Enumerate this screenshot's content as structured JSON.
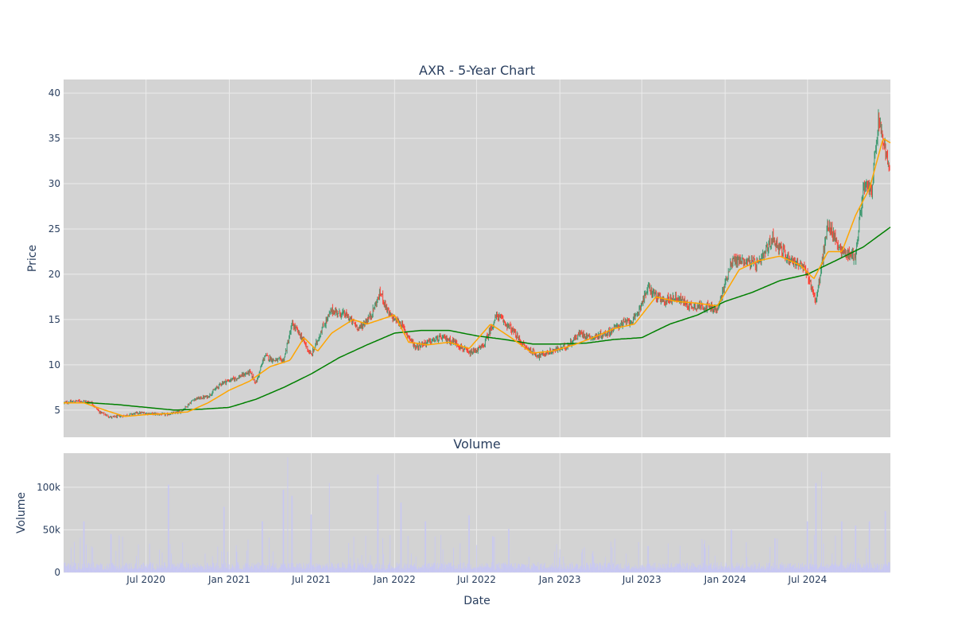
{
  "chart_data": [
    {
      "type": "candlestick",
      "title": "AXR - 5-Year Chart",
      "ylabel": "Price",
      "ylim": [
        2,
        41.5
      ],
      "yticks": [
        5,
        10,
        15,
        20,
        25,
        30,
        35,
        40
      ],
      "ytick_labels": [
        "5",
        "10",
        "15",
        "20",
        "25",
        "30",
        "35",
        "40"
      ],
      "grid": true,
      "legend": "none",
      "x_start": "2020-01-01",
      "x_end": "2024-12-31",
      "colors": {
        "background": "#d3d3d3",
        "increasing": "#3d9970",
        "decreasing": "#ff4136",
        "ma_short": "#ffa500",
        "ma_long": "#008000",
        "grid": "#ebebeb"
      },
      "close_series": {
        "dates": [
          "2020-01-01",
          "2020-02-01",
          "2020-03-01",
          "2020-03-20",
          "2020-04-15",
          "2020-05-15",
          "2020-06-15",
          "2020-07-15",
          "2020-08-15",
          "2020-09-15",
          "2020-10-15",
          "2020-11-15",
          "2020-12-15",
          "2021-01-15",
          "2021-02-15",
          "2021-03-01",
          "2021-03-20",
          "2021-04-10",
          "2021-05-01",
          "2021-05-20",
          "2021-06-10",
          "2021-07-01",
          "2021-07-25",
          "2021-08-15",
          "2021-09-15",
          "2021-10-15",
          "2021-11-10",
          "2021-12-01",
          "2021-12-20",
          "2022-01-15",
          "2022-02-15",
          "2022-03-15",
          "2022-04-15",
          "2022-05-15",
          "2022-06-15",
          "2022-07-15",
          "2022-08-15",
          "2022-09-15",
          "2022-10-15",
          "2022-11-15",
          "2022-12-15",
          "2023-01-15",
          "2023-02-15",
          "2023-03-15",
          "2023-04-15",
          "2023-05-15",
          "2023-06-15",
          "2023-07-15",
          "2023-08-15",
          "2023-09-15",
          "2023-10-15",
          "2023-11-15",
          "2023-12-15",
          "2024-01-15",
          "2024-02-15",
          "2024-03-15",
          "2024-04-15",
          "2024-05-15",
          "2024-06-15",
          "2024-07-01",
          "2024-07-20",
          "2024-08-15",
          "2024-09-15",
          "2024-10-15",
          "2024-11-01",
          "2024-11-20",
          "2024-12-05",
          "2024-12-31"
        ],
        "close": [
          5.8,
          6.0,
          5.9,
          4.8,
          4.2,
          4.4,
          4.7,
          4.6,
          4.5,
          4.8,
          6.2,
          6.5,
          8.0,
          8.5,
          9.2,
          8.0,
          11.0,
          10.5,
          10.5,
          14.5,
          13.0,
          11.0,
          14.0,
          16.0,
          15.5,
          14.0,
          15.5,
          18.0,
          15.5,
          14.5,
          12.0,
          12.5,
          13.0,
          12.5,
          11.2,
          12.0,
          15.5,
          14.0,
          12.0,
          11.0,
          11.5,
          12.0,
          13.5,
          13.0,
          13.5,
          14.5,
          15.0,
          18.5,
          17.0,
          17.5,
          16.5,
          16.5,
          16.0,
          21.5,
          21.5,
          21.0,
          24.0,
          22.0,
          21.0,
          20.0,
          17.0,
          25.5,
          22.5,
          22.0,
          29.5,
          29.5,
          37.0,
          31.0
        ]
      },
      "ma_short_series": {
        "dates": [
          "2020-01-01",
          "2020-02-15",
          "2020-04-01",
          "2020-05-15",
          "2020-07-01",
          "2020-08-15",
          "2020-10-01",
          "2020-11-15",
          "2021-01-01",
          "2021-02-15",
          "2021-04-01",
          "2021-05-15",
          "2021-06-15",
          "2021-07-15",
          "2021-08-15",
          "2021-10-01",
          "2021-11-01",
          "2021-12-01",
          "2022-01-01",
          "2022-02-01",
          "2022-03-15",
          "2022-05-01",
          "2022-06-15",
          "2022-08-01",
          "2022-09-15",
          "2022-11-01",
          "2022-12-15",
          "2023-02-01",
          "2023-03-15",
          "2023-05-01",
          "2023-06-15",
          "2023-08-01",
          "2023-09-15",
          "2023-11-01",
          "2023-12-15",
          "2024-02-01",
          "2024-03-15",
          "2024-05-01",
          "2024-06-15",
          "2024-07-15",
          "2024-08-15",
          "2024-09-15",
          "2024-10-15",
          "2024-11-15",
          "2024-12-15",
          "2024-12-31"
        ],
        "values": [
          5.8,
          5.8,
          5.0,
          4.3,
          4.5,
          4.6,
          4.8,
          5.8,
          7.2,
          8.2,
          9.8,
          10.5,
          13.0,
          11.5,
          13.5,
          15.0,
          14.5,
          15.0,
          15.5,
          12.5,
          12.2,
          12.5,
          11.8,
          14.5,
          13.0,
          11.3,
          11.5,
          12.2,
          13.0,
          14.0,
          14.5,
          17.5,
          17.0,
          16.8,
          16.5,
          20.5,
          21.5,
          22.0,
          21.0,
          19.5,
          22.5,
          22.5,
          26.5,
          29.5,
          35.0,
          34.5
        ]
      },
      "ma_long_series": {
        "dates": [
          "2020-01-01",
          "2020-03-01",
          "2020-05-01",
          "2020-07-01",
          "2020-09-01",
          "2020-11-01",
          "2021-01-01",
          "2021-03-01",
          "2021-05-01",
          "2021-07-01",
          "2021-09-01",
          "2021-11-01",
          "2022-01-01",
          "2022-03-01",
          "2022-05-01",
          "2022-07-01",
          "2022-09-01",
          "2022-11-01",
          "2023-01-01",
          "2023-03-01",
          "2023-05-01",
          "2023-07-01",
          "2023-09-01",
          "2023-11-01",
          "2024-01-01",
          "2024-03-01",
          "2024-05-01",
          "2024-07-01",
          "2024-09-01",
          "2024-11-01",
          "2024-12-31"
        ],
        "values": [
          5.8,
          5.8,
          5.6,
          5.3,
          5.0,
          5.1,
          5.3,
          6.2,
          7.5,
          9.0,
          10.8,
          12.2,
          13.5,
          13.8,
          13.8,
          13.2,
          12.8,
          12.3,
          12.3,
          12.4,
          12.8,
          13.0,
          14.5,
          15.5,
          17.0,
          18.0,
          19.3,
          20.0,
          21.5,
          23.0,
          25.2
        ]
      }
    },
    {
      "type": "bar",
      "title": "Volume",
      "xlabel": "Date",
      "ylabel": "Volume",
      "ylim": [
        0,
        140000
      ],
      "yticks": [
        0,
        50000,
        100000
      ],
      "ytick_labels": [
        "0",
        "50k",
        "100k"
      ],
      "grid": true,
      "colors": {
        "bar": "#c7c7f5",
        "background": "#d3d3d3"
      },
      "x_tick_dates": [
        "2020-07-01",
        "2021-01-01",
        "2021-07-01",
        "2022-01-01",
        "2022-07-01",
        "2023-01-01",
        "2023-07-01",
        "2024-01-01",
        "2024-07-01"
      ],
      "x_tick_labels": [
        "Jul 2020",
        "Jan 2021",
        "Jul 2021",
        "Jan 2022",
        "Jul 2022",
        "Jan 2023",
        "Jul 2023",
        "Jan 2024",
        "Jul 2024"
      ],
      "volume_spikes": {
        "dates": [
          "2020-02-15",
          "2020-04-15",
          "2020-08-20",
          "2020-12-20",
          "2021-03-15",
          "2021-05-01",
          "2021-05-10",
          "2021-05-20",
          "2021-07-01",
          "2021-08-10",
          "2021-11-25",
          "2022-01-15",
          "2022-03-10",
          "2022-06-15",
          "2022-09-10",
          "2023-03-15",
          "2023-07-15",
          "2024-01-15",
          "2024-04-20",
          "2024-07-01",
          "2024-07-20",
          "2024-08-01",
          "2024-09-15",
          "2024-10-15",
          "2024-11-15",
          "2024-12-20"
        ],
        "values": [
          60000,
          45000,
          103000,
          77000,
          60000,
          97000,
          135000,
          90000,
          68000,
          105000,
          115000,
          82000,
          60000,
          67000,
          51000,
          25000,
          31000,
          50000,
          40000,
          60000,
          105000,
          118000,
          60000,
          55000,
          60000,
          72000
        ]
      }
    }
  ]
}
